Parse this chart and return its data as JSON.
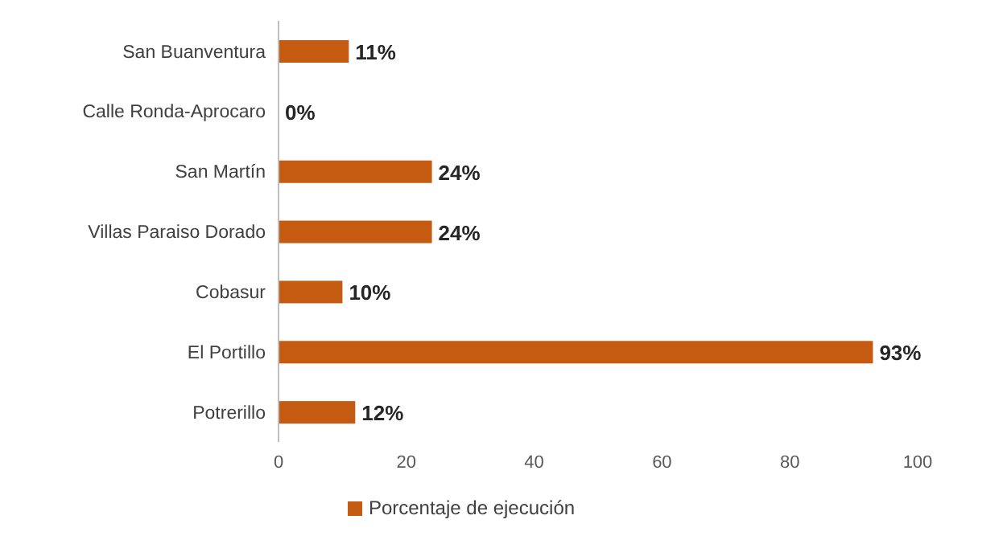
{
  "chart_data": {
    "type": "bar",
    "orientation": "horizontal",
    "categories": [
      "San Buanventura",
      "Calle Ronda-Aprocaro",
      "San Martín",
      "Villas Paraiso Dorado",
      "Cobasur",
      "El Portillo",
      "Potrerillo"
    ],
    "series": [
      {
        "name": "Porcentaje de ejecución",
        "color": "#c55a11",
        "values": [
          11,
          0,
          24,
          24,
          10,
          93,
          12
        ],
        "value_labels": [
          "11%",
          "0%",
          "24%",
          "24%",
          "10%",
          "93%",
          "12%"
        ]
      }
    ],
    "xlim": [
      0,
      100
    ],
    "xticks": [
      0,
      20,
      40,
      60,
      80,
      100
    ],
    "grid": false,
    "legend": "bottom"
  }
}
